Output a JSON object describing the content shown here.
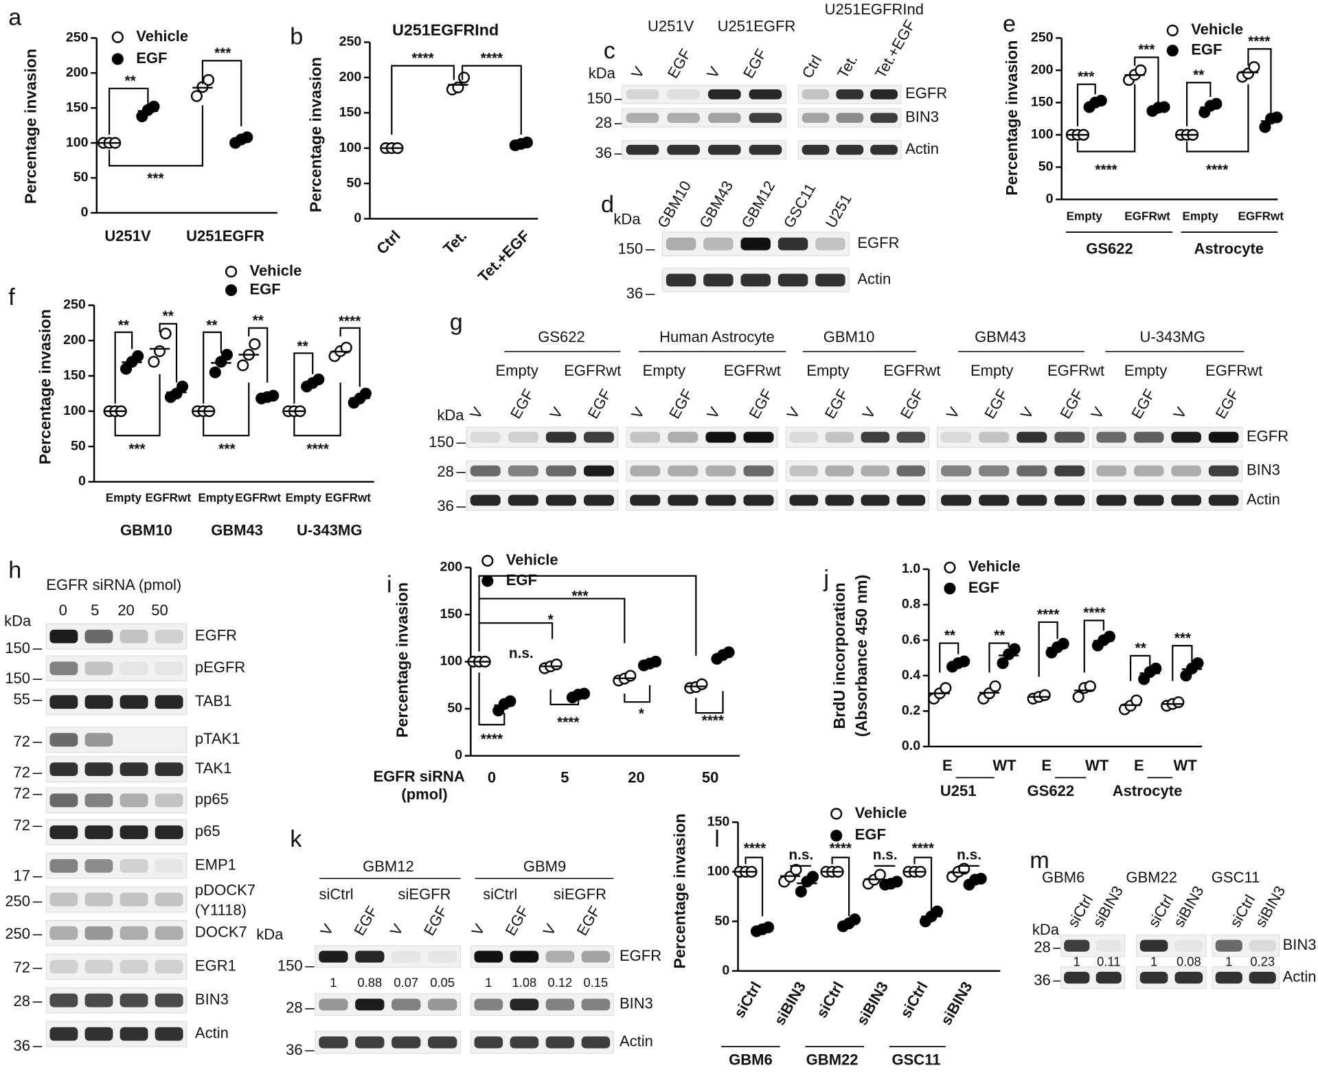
{
  "chart_data": [
    {
      "panel": "a",
      "type": "dot",
      "ylabel": "Percentage invasion",
      "ylim": [
        0,
        250
      ],
      "yticks": [
        0,
        50,
        100,
        150,
        200,
        250
      ],
      "categories": [
        "U251V",
        "U251EGFR"
      ],
      "series": [
        {
          "name": "Vehicle",
          "color": "#ffffff",
          "values": [
            [
              100,
              100,
              100
            ],
            [
              167,
              180,
              190
            ]
          ]
        },
        {
          "name": "EGF",
          "color": "#000000",
          "values": [
            [
              138,
              147,
              152
            ],
            [
              100,
              105,
              108
            ]
          ]
        }
      ],
      "annotations": [
        "**",
        "***",
        "***"
      ]
    },
    {
      "panel": "b",
      "type": "dot",
      "title": "U251EGFRInd",
      "ylabel": "Percentage invasion",
      "ylim": [
        0,
        250
      ],
      "yticks": [
        0,
        50,
        100,
        150,
        200,
        250
      ],
      "categories": [
        "Ctrl",
        "Tet.",
        "Tet.+EGF"
      ],
      "values": [
        [
          100,
          100,
          100
        ],
        [
          183,
          186,
          200
        ],
        [
          104,
          106,
          108
        ]
      ],
      "colors": [
        "#ffffff",
        "#ffffff",
        "#000000"
      ],
      "annotations": [
        "****",
        "****"
      ]
    },
    {
      "panel": "e",
      "type": "dot",
      "ylabel": "Percentage invasion",
      "ylim": [
        0,
        250
      ],
      "yticks": [
        0,
        50,
        100,
        150,
        200,
        250
      ],
      "categories": [
        "Empty",
        "EGFRwt",
        "Empty",
        "EGFRwt"
      ],
      "groups": [
        "GS622",
        "Astrocyte"
      ],
      "series": [
        {
          "name": "Vehicle",
          "color": "#ffffff",
          "values": [
            [
              100,
              100,
              100
            ],
            [
              185,
              193,
              200
            ],
            [
              100,
              100,
              100
            ],
            [
              190,
              195,
              205
            ]
          ]
        },
        {
          "name": "EGF",
          "color": "#000000",
          "values": [
            [
              143,
              150,
              153
            ],
            [
              137,
              142,
              143
            ],
            [
              135,
              145,
              148
            ],
            [
              112,
              125,
              127
            ]
          ]
        }
      ],
      "annotations": [
        "***",
        "***",
        "****",
        "**",
        "****",
        "****"
      ]
    },
    {
      "panel": "f",
      "type": "dot",
      "ylabel": "Percentage invasion",
      "ylim": [
        0,
        250
      ],
      "yticks": [
        0,
        50,
        100,
        150,
        200,
        250
      ],
      "categories": [
        "Empty",
        "EGFRwt",
        "Empty",
        "EGFRwt",
        "Empty",
        "EGFRwt"
      ],
      "groups": [
        "GBM10",
        "GBM43",
        "U-343MG"
      ],
      "series": [
        {
          "name": "Vehicle",
          "color": "#ffffff",
          "values": [
            [
              100,
              100,
              100
            ],
            [
              170,
              185,
              210
            ],
            [
              100,
              100,
              100
            ],
            [
              165,
              180,
              195
            ],
            [
              100,
              100,
              100
            ],
            [
              178,
              185,
              190
            ]
          ]
        },
        {
          "name": "EGF",
          "color": "#000000",
          "values": [
            [
              160,
              170,
              178
            ],
            [
              120,
              125,
              135
            ],
            [
              155,
              170,
              180
            ],
            [
              118,
              120,
              122
            ],
            [
              135,
              140,
              145
            ],
            [
              112,
              118,
              125
            ]
          ]
        }
      ],
      "annotations": [
        "**",
        "**",
        "***",
        "**",
        "**",
        "***",
        "**",
        "****",
        "****"
      ]
    },
    {
      "panel": "i",
      "type": "dot",
      "ylabel": "Percentage invasion",
      "xlabel": [
        "EGFR siRNA",
        "(pmol)"
      ],
      "ylim": [
        0,
        200
      ],
      "yticks": [
        0,
        50,
        100,
        150,
        200
      ],
      "categories": [
        0,
        5,
        20,
        50
      ],
      "series": [
        {
          "name": "Vehicle",
          "color": "#ffffff",
          "values": [
            [
              100,
              100,
              100
            ],
            [
              93,
              95,
              97
            ],
            [
              80,
              82,
              85
            ],
            [
              72,
              73,
              76
            ]
          ]
        },
        {
          "name": "EGF",
          "color": "#000000",
          "values": [
            [
              48,
              55,
              58
            ],
            [
              62,
              65,
              66
            ],
            [
              96,
              98,
              100
            ],
            [
              103,
              107,
              110
            ]
          ]
        }
      ],
      "annotations": [
        "n.s.",
        "*",
        "***",
        "****",
        "****",
        "*",
        "****"
      ]
    },
    {
      "panel": "j",
      "type": "dot",
      "ylabel": [
        "BrdU incorporation",
        "(Absorbance 450 nm)"
      ],
      "ylim": [
        0,
        1
      ],
      "yticks": [
        {
          "value": 0,
          "label": "0.0"
        },
        0.2,
        0.4,
        0.6,
        0.8,
        {
          "value": 1,
          "label": "1.0"
        }
      ],
      "categories": [
        "E",
        "WT",
        "E",
        "WT",
        "E",
        "WT"
      ],
      "groups": [
        "U251",
        "GS622",
        "Astrocyte"
      ],
      "series": [
        {
          "name": "Vehicle",
          "color": "#ffffff",
          "values": [
            [
              0.27,
              0.3,
              0.33
            ],
            [
              0.27,
              0.3,
              0.34
            ],
            [
              0.27,
              0.28,
              0.29
            ],
            [
              0.28,
              0.33,
              0.34
            ],
            [
              0.21,
              0.23,
              0.26
            ],
            [
              0.23,
              0.24,
              0.25
            ]
          ]
        },
        {
          "name": "EGF",
          "color": "#000000",
          "values": [
            [
              0.45,
              0.47,
              0.48
            ],
            [
              0.47,
              0.52,
              0.55
            ],
            [
              0.53,
              0.56,
              0.58
            ],
            [
              0.57,
              0.6,
              0.62
            ],
            [
              0.38,
              0.42,
              0.44
            ],
            [
              0.4,
              0.44,
              0.47
            ]
          ]
        }
      ],
      "annotations": [
        "**",
        "**",
        "****",
        "****",
        "**",
        "***"
      ]
    },
    {
      "panel": "l",
      "type": "dot",
      "ylabel": "Percentage invasion",
      "ylim": [
        0,
        150
      ],
      "yticks": [
        0,
        50,
        100,
        150
      ],
      "categories": [
        "siCtrl",
        "siBIN3",
        "siCtrl",
        "siBIN3",
        "siCtrl",
        "siBIN3"
      ],
      "groups": [
        "GBM6",
        "GBM22",
        "GSC11"
      ],
      "series": [
        {
          "name": "Vehicle",
          "color": "#ffffff",
          "values": [
            [
              100,
              100,
              100
            ],
            [
              90,
              95,
              102
            ],
            [
              100,
              100,
              100
            ],
            [
              88,
              92,
              97
            ],
            [
              100,
              100,
              100
            ],
            [
              95,
              100,
              103
            ]
          ]
        },
        {
          "name": "EGF",
          "color": "#000000",
          "values": [
            [
              40,
              42,
              44
            ],
            [
              80,
              90,
              95
            ],
            [
              45,
              48,
              52
            ],
            [
              87,
              88,
              90
            ],
            [
              50,
              55,
              60
            ],
            [
              87,
              92,
              93
            ]
          ]
        }
      ],
      "annotations": [
        "****",
        "n.s.",
        "****",
        "n.s.",
        "****",
        "n.s."
      ]
    }
  ],
  "blots": [
    {
      "panel": "c",
      "kda": "kDa",
      "groups": [
        "U251V",
        "U251EGFR",
        "U251EGFRInd"
      ],
      "lanes": [
        "V",
        "EGF",
        "V",
        "EGF",
        "Ctrl",
        "Tet.",
        "Tet.+EGF"
      ],
      "markers": [
        150,
        28,
        36
      ],
      "rows": [
        "EGFR",
        "BIN3",
        "Actin"
      ]
    },
    {
      "panel": "d",
      "kda": "kDa",
      "lanes": [
        "GBM10",
        "GBM43",
        "GBM12",
        "GSC11",
        "U251"
      ],
      "markers": [
        150,
        36
      ],
      "rows": [
        "EGFR",
        "Actin"
      ]
    },
    {
      "panel": "g",
      "kda": "kDa",
      "groups": [
        "GS622",
        "Human Astrocyte",
        "GBM10",
        "GBM43",
        "U-343MG"
      ],
      "subgroups": [
        "Empty",
        "EGFRwt",
        "Empty",
        "EGFRwt",
        "Empty",
        "EGFRwt",
        "Empty",
        "EGFRwt",
        "Empty",
        "EGFRwt"
      ],
      "lanes": [
        "V",
        "EGF",
        "V",
        "EGF",
        "V",
        "EGF",
        "V",
        "EGF",
        "V",
        "EGF",
        "V",
        "EGF",
        "V",
        "EGF",
        "V",
        "EGF",
        "V",
        "EGF",
        "V",
        "EGF"
      ],
      "markers": [
        150,
        28,
        36
      ],
      "rows": [
        "EGFR",
        "BIN3",
        "Actin"
      ]
    },
    {
      "panel": "h",
      "title": "EGFR siRNA (pmol)",
      "kda": "kDa",
      "lanes": [
        0,
        5,
        20,
        50
      ],
      "markers": [
        150,
        150,
        55,
        72,
        72,
        72,
        72,
        17,
        250,
        250,
        72,
        28,
        36
      ],
      "rows": [
        "EGFR",
        "pEGFR",
        "TAB1",
        "pTAK1",
        "TAK1",
        "pp65",
        "p65",
        "EMP1",
        [
          "pDOCK7",
          "(Y1118)"
        ],
        "DOCK7",
        "EGR1",
        "BIN3",
        "Actin"
      ]
    },
    {
      "panel": "k",
      "kda": "kDa",
      "groups": [
        "GBM12",
        "GBM9"
      ],
      "subgroups": [
        "siCtrl",
        "siEGFR",
        "siCtrl",
        "siEGFR"
      ],
      "lanes": [
        "V",
        "EGF",
        "V",
        "EGF",
        "V",
        "EGF",
        "V",
        "EGF"
      ],
      "quantification": [
        1,
        0.88,
        0.07,
        0.05,
        1,
        1.08,
        0.12,
        0.15
      ],
      "markers": [
        150,
        28,
        36
      ],
      "rows": [
        "EGFR",
        "BIN3",
        "Actin"
      ]
    },
    {
      "panel": "m",
      "kda": "kDa",
      "groups": [
        "GBM6",
        "GBM22",
        "GSC11"
      ],
      "lanes": [
        "siCtrl",
        "siBIN3",
        "siCtrl",
        "siBIN3",
        "siCtrl",
        "siBIN3"
      ],
      "quantification": [
        1,
        0.11,
        1,
        0.08,
        1,
        0.23
      ],
      "markers": [
        28,
        36
      ],
      "rows": [
        "BIN3",
        "Actin"
      ]
    }
  ]
}
